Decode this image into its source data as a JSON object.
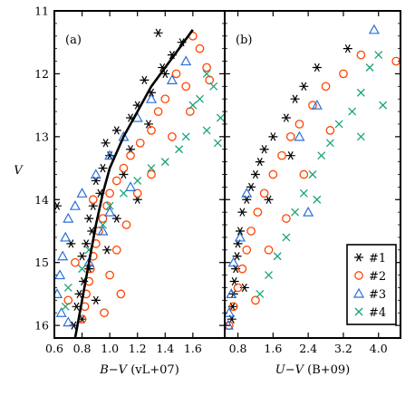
{
  "colors": {
    "s1": "#000000",
    "s2": "#ff4500",
    "s3": "#2b6fd6",
    "s4": "#1aa37a",
    "fit": "#000000"
  },
  "y_axis": {
    "label": "V",
    "label_italic": true,
    "ylim": [
      16.2,
      11.0
    ],
    "ticks": [
      11,
      12,
      13,
      14,
      15,
      16
    ]
  },
  "legend": {
    "placement": "bottom-right of panel (b)",
    "entries": [
      "#1",
      "#2",
      "#3",
      "#4"
    ]
  },
  "chart_data": [
    {
      "type": "scatter",
      "panel_label": "(a)",
      "xlabel_italic": "B−V",
      "xlabel_suffix": " (vL+07)",
      "xlim": [
        0.6,
        1.83
      ],
      "ylim": [
        16.2,
        11.0
      ],
      "xticks": [
        "0.6",
        "0.8",
        "1.0",
        "1.2",
        "1.4",
        "1.6"
      ],
      "yticks": [
        "11",
        "12",
        "13",
        "14",
        "15",
        "16"
      ],
      "series": [
        {
          "name": "#1",
          "marker": "asterisk",
          "color": "#000000",
          "points": [
            [
              1.35,
              11.35
            ],
            [
              1.52,
              11.5
            ],
            [
              1.45,
              11.7
            ],
            [
              1.38,
              11.9
            ],
            [
              1.25,
              12.1
            ],
            [
              1.3,
              12.3
            ],
            [
              1.2,
              12.5
            ],
            [
              1.15,
              12.7
            ],
            [
              1.05,
              12.9
            ],
            [
              0.97,
              13.1
            ],
            [
              1.0,
              13.3
            ],
            [
              0.95,
              13.5
            ],
            [
              0.9,
              13.7
            ],
            [
              0.93,
              13.9
            ],
            [
              0.88,
              14.1
            ],
            [
              0.85,
              14.3
            ],
            [
              0.87,
              14.5
            ],
            [
              0.83,
              14.7
            ],
            [
              0.8,
              14.9
            ],
            [
              0.85,
              15.1
            ],
            [
              0.81,
              15.3
            ],
            [
              0.78,
              15.5
            ],
            [
              0.76,
              15.7
            ],
            [
              0.8,
              15.9
            ],
            [
              0.74,
              16.0
            ],
            [
              1.15,
              13.2
            ],
            [
              1.2,
              14.0
            ],
            [
              0.72,
              14.7
            ],
            [
              0.62,
              14.1
            ],
            [
              1.05,
              14.3
            ],
            [
              0.9,
              15.6
            ],
            [
              1.4,
              12.0
            ],
            [
              1.1,
              13.6
            ],
            [
              0.98,
              14.8
            ],
            [
              1.28,
              12.8
            ]
          ]
        },
        {
          "name": "#2",
          "marker": "circle",
          "color": "#ff4500",
          "points": [
            [
              1.6,
              11.4
            ],
            [
              1.65,
              11.6
            ],
            [
              1.7,
              11.9
            ],
            [
              1.55,
              12.2
            ],
            [
              1.48,
              12.0
            ],
            [
              1.4,
              12.4
            ],
            [
              1.35,
              12.6
            ],
            [
              1.3,
              12.9
            ],
            [
              1.22,
              13.1
            ],
            [
              1.15,
              13.3
            ],
            [
              1.1,
              13.5
            ],
            [
              1.05,
              13.7
            ],
            [
              1.0,
              13.9
            ],
            [
              0.98,
              14.1
            ],
            [
              0.95,
              14.3
            ],
            [
              0.92,
              14.5
            ],
            [
              0.9,
              14.7
            ],
            [
              0.88,
              14.9
            ],
            [
              0.86,
              15.1
            ],
            [
              0.85,
              15.3
            ],
            [
              0.83,
              15.5
            ],
            [
              0.82,
              15.7
            ],
            [
              0.8,
              15.9
            ],
            [
              1.0,
              15.2
            ],
            [
              1.05,
              14.8
            ],
            [
              1.12,
              14.4
            ],
            [
              1.2,
              13.9
            ],
            [
              0.75,
              15.0
            ],
            [
              0.7,
              15.6
            ],
            [
              0.96,
              15.8
            ],
            [
              1.72,
              12.1
            ],
            [
              1.58,
              12.6
            ],
            [
              1.45,
              13.0
            ],
            [
              1.3,
              13.6
            ],
            [
              0.88,
              14.0
            ],
            [
              1.08,
              15.5
            ]
          ]
        },
        {
          "name": "#3",
          "marker": "triangle",
          "color": "#2b6fd6",
          "points": [
            [
              1.55,
              11.8
            ],
            [
              1.45,
              12.1
            ],
            [
              1.3,
              12.4
            ],
            [
              1.2,
              12.7
            ],
            [
              1.1,
              13.0
            ],
            [
              1.0,
              13.3
            ],
            [
              0.9,
              13.6
            ],
            [
              0.8,
              13.9
            ],
            [
              0.75,
              14.1
            ],
            [
              0.7,
              14.3
            ],
            [
              0.68,
              14.6
            ],
            [
              0.66,
              14.9
            ],
            [
              0.64,
              15.2
            ],
            [
              0.62,
              15.5
            ],
            [
              0.65,
              15.8
            ],
            [
              0.7,
              15.95
            ],
            [
              0.85,
              15.0
            ],
            [
              0.95,
              14.5
            ],
            [
              1.0,
              14.2
            ],
            [
              1.15,
              13.8
            ]
          ]
        },
        {
          "name": "#4",
          "marker": "cross",
          "color": "#1aa37a",
          "points": [
            [
              1.7,
              12.0
            ],
            [
              1.75,
              12.2
            ],
            [
              1.65,
              12.4
            ],
            [
              1.6,
              12.5
            ],
            [
              1.8,
              12.7
            ],
            [
              1.7,
              12.9
            ],
            [
              1.55,
              13.0
            ],
            [
              1.5,
              13.2
            ],
            [
              1.4,
              13.4
            ],
            [
              1.3,
              13.5
            ],
            [
              1.2,
              13.7
            ],
            [
              1.1,
              13.9
            ],
            [
              1.0,
              14.1
            ],
            [
              0.95,
              14.4
            ],
            [
              0.85,
              14.8
            ],
            [
              0.8,
              15.1
            ],
            [
              0.7,
              15.4
            ],
            [
              0.68,
              15.7
            ],
            [
              1.78,
              13.1
            ]
          ]
        }
      ],
      "fit_line": [
        [
          0.75,
          16.2
        ],
        [
          0.8,
          15.6
        ],
        [
          0.85,
          15.0
        ],
        [
          0.9,
          14.4
        ],
        [
          0.95,
          13.9
        ],
        [
          1.0,
          13.5
        ],
        [
          1.1,
          13.0
        ],
        [
          1.2,
          12.6
        ],
        [
          1.3,
          12.2
        ],
        [
          1.4,
          11.9
        ],
        [
          1.5,
          11.6
        ],
        [
          1.6,
          11.3
        ]
      ]
    },
    {
      "type": "scatter",
      "panel_label": "(b)",
      "xlabel_italic": "U−V",
      "xlabel_suffix": " (B+09)",
      "xlim": [
        0.5,
        4.5
      ],
      "ylim": [
        16.2,
        11.0
      ],
      "xticks": [
        "0.8",
        "1.6",
        "2.4",
        "3.2",
        "4.0"
      ],
      "yticks": [
        "11",
        "12",
        "13",
        "14",
        "15",
        "16"
      ],
      "series": [
        {
          "name": "#1",
          "marker": "asterisk",
          "color": "#000000",
          "points": [
            [
              3.3,
              11.6
            ],
            [
              2.6,
              11.9
            ],
            [
              2.3,
              12.2
            ],
            [
              2.1,
              12.4
            ],
            [
              1.9,
              12.7
            ],
            [
              1.6,
              13.0
            ],
            [
              1.4,
              13.2
            ],
            [
              1.3,
              13.4
            ],
            [
              1.2,
              13.6
            ],
            [
              1.1,
              13.8
            ],
            [
              1.0,
              14.0
            ],
            [
              0.9,
              14.2
            ],
            [
              0.85,
              14.5
            ],
            [
              0.8,
              14.7
            ],
            [
              0.78,
              14.9
            ],
            [
              0.75,
              15.1
            ],
            [
              0.72,
              15.3
            ],
            [
              0.7,
              15.5
            ],
            [
              0.68,
              15.7
            ],
            [
              0.66,
              15.9
            ],
            [
              1.5,
              14.0
            ],
            [
              2.0,
              13.3
            ],
            [
              0.95,
              15.4
            ]
          ]
        },
        {
          "name": "#2",
          "marker": "circle",
          "color": "#ff4500",
          "points": [
            [
              4.4,
              11.8
            ],
            [
              3.6,
              11.7
            ],
            [
              3.2,
              12.0
            ],
            [
              2.8,
              12.2
            ],
            [
              2.5,
              12.5
            ],
            [
              2.2,
              12.8
            ],
            [
              2.0,
              13.0
            ],
            [
              1.8,
              13.3
            ],
            [
              1.6,
              13.6
            ],
            [
              1.4,
              13.9
            ],
            [
              1.25,
              14.2
            ],
            [
              1.1,
              14.5
            ],
            [
              1.0,
              14.8
            ],
            [
              0.9,
              15.1
            ],
            [
              0.8,
              15.4
            ],
            [
              0.7,
              15.7
            ],
            [
              0.6,
              16.0
            ],
            [
              1.5,
              14.8
            ],
            [
              1.9,
              14.3
            ],
            [
              2.3,
              13.6
            ],
            [
              2.9,
              12.9
            ],
            [
              1.2,
              15.6
            ]
          ]
        },
        {
          "name": "#3",
          "marker": "triangle",
          "color": "#2b6fd6",
          "points": [
            [
              3.9,
              11.3
            ],
            [
              2.6,
              12.5
            ],
            [
              2.2,
              13.0
            ],
            [
              2.4,
              14.2
            ],
            [
              1.0,
              13.9
            ],
            [
              0.85,
              14.6
            ],
            [
              0.7,
              15.0
            ],
            [
              0.65,
              15.5
            ],
            [
              0.6,
              15.8
            ],
            [
              0.58,
              16.0
            ]
          ]
        },
        {
          "name": "#4",
          "marker": "cross",
          "color": "#1aa37a",
          "points": [
            [
              4.0,
              11.7
            ],
            [
              3.8,
              11.9
            ],
            [
              3.6,
              12.3
            ],
            [
              3.4,
              12.6
            ],
            [
              3.1,
              12.8
            ],
            [
              2.9,
              13.1
            ],
            [
              2.7,
              13.3
            ],
            [
              2.5,
              13.6
            ],
            [
              2.3,
              13.9
            ],
            [
              2.1,
              14.2
            ],
            [
              1.9,
              14.6
            ],
            [
              1.7,
              14.9
            ],
            [
              1.5,
              15.2
            ],
            [
              1.3,
              15.5
            ],
            [
              3.6,
              13.0
            ],
            [
              4.1,
              12.5
            ],
            [
              2.6,
              14.0
            ]
          ]
        }
      ]
    }
  ]
}
